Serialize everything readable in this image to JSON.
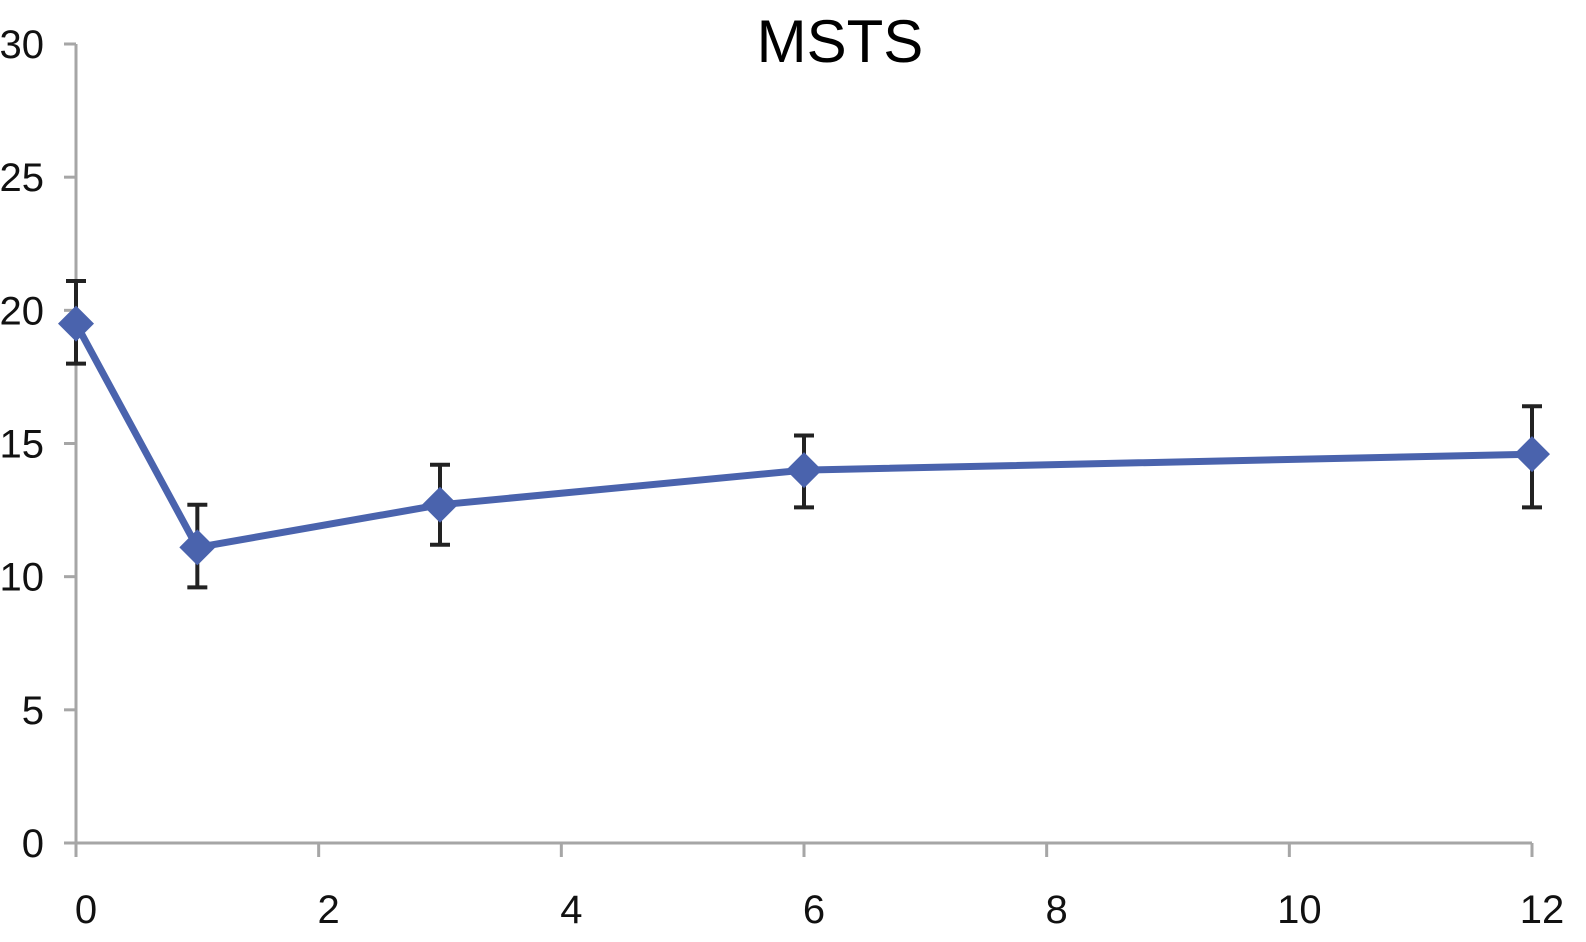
{
  "chart_data": {
    "type": "line",
    "title": "MSTS",
    "xlabel": "",
    "ylabel": "",
    "xlim": [
      0,
      12
    ],
    "ylim": [
      0,
      30
    ],
    "x_ticks": [
      0,
      2,
      4,
      6,
      8,
      10,
      12
    ],
    "y_ticks": [
      0,
      5,
      10,
      15,
      20,
      25,
      30
    ],
    "grid": false,
    "legend": "none",
    "series": [
      {
        "color": "#4a63ad",
        "marker": "diamond",
        "points": [
          {
            "x": 0,
            "y": 19.5,
            "err_low": 18.0,
            "err_high": 21.1
          },
          {
            "x": 1,
            "y": 11.1,
            "err_low": 9.6,
            "err_high": 12.7
          },
          {
            "x": 3,
            "y": 12.7,
            "err_low": 11.2,
            "err_high": 14.2
          },
          {
            "x": 6,
            "y": 14.0,
            "err_low": 12.6,
            "err_high": 15.3
          },
          {
            "x": 12,
            "y": 14.6,
            "err_low": 12.6,
            "err_high": 16.4
          }
        ]
      }
    ]
  }
}
